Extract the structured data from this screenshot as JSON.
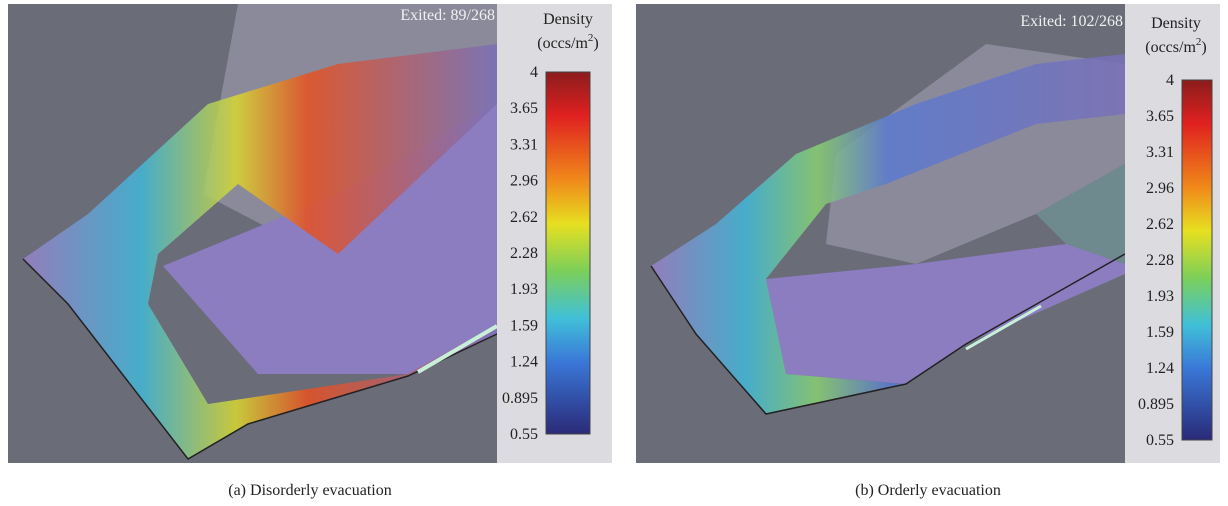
{
  "panels": [
    {
      "exited": "Exited: 89/268",
      "legend_title": "Density",
      "legend_unit": "(occs/m",
      "legend_unit_sup": "2",
      "legend_unit_end": ")",
      "ticks": [
        "4",
        "3.65",
        "3.31",
        "2.96",
        "2.62",
        "2.28",
        "1.93",
        "1.59",
        "1.24",
        "0.895",
        "0.55"
      ],
      "caption": "(a)  Disorderly evacuation"
    },
    {
      "exited": "Exited: 102/268",
      "legend_title": "Density",
      "legend_unit": "(occs/m",
      "legend_unit_sup": "2",
      "legend_unit_end": ")",
      "ticks": [
        "4",
        "3.65",
        "3.31",
        "2.96",
        "2.62",
        "2.28",
        "1.93",
        "1.59",
        "1.24",
        "0.895",
        "0.55"
      ],
      "caption": "(b)  Orderly evacuation"
    }
  ]
}
